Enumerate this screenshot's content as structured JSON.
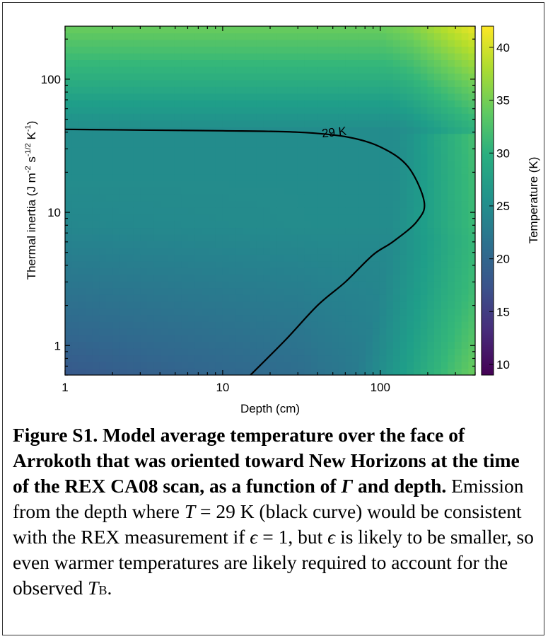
{
  "chart_data": {
    "type": "heatmap",
    "title": "",
    "xlabel": "Depth (cm)",
    "ylabel": "Thermal inertia (J m⁻² s⁻¹ᐟ² K⁻¹)",
    "ylabel_parts": {
      "base": "Thermal inertia (J m",
      "sup1": "-2",
      "mid1": " s",
      "sup2": "-1/2",
      "mid2": " K",
      "sup3": "-1",
      "end": ")"
    },
    "x_scale": "log",
    "y_scale": "log",
    "xlim": [
      1,
      400
    ],
    "ylim": [
      0.6,
      250
    ],
    "x_ticks": [
      1,
      10,
      100
    ],
    "x_tick_labels": [
      "1",
      "10",
      "100"
    ],
    "y_ticks": [
      1,
      10,
      100
    ],
    "y_tick_labels": [
      "1",
      "10",
      "100"
    ],
    "colorbar": {
      "label": "Temperature (K)",
      "range": [
        9,
        42
      ],
      "ticks": [
        10,
        15,
        20,
        25,
        30,
        35,
        40
      ],
      "tick_labels": [
        "10",
        "15",
        "20",
        "25",
        "30",
        "35",
        "40"
      ],
      "colormap": "viridis"
    },
    "contour": {
      "label": "29 K",
      "level": 29,
      "points": [
        [
          1,
          42
        ],
        [
          3,
          41.5
        ],
        [
          10,
          41
        ],
        [
          30,
          40
        ],
        [
          60,
          37
        ],
        [
          100,
          31
        ],
        [
          150,
          22
        ],
        [
          190,
          12
        ],
        [
          170,
          8.5
        ],
        [
          120,
          6
        ],
        [
          90,
          4.8
        ],
        [
          60,
          3
        ],
        [
          40,
          2
        ],
        [
          25,
          1.1
        ],
        [
          15,
          0.6
        ]
      ]
    },
    "grid": false
  },
  "caption": {
    "bold": "Figure S1.  Model average temperature over the face of Arrokoth that was oriented toward New Horizons at the time of the REX CA08 scan, as a function of ",
    "gamma": "Γ",
    "bold_end": " and depth.",
    "t1": "  Emission from the depth where ",
    "T": "T",
    "t2": " = 29 K (black curve) would be consistent with the REX measure­ment if ",
    "eps1": "ϵ",
    "t3": " = 1, but ",
    "eps2": "ϵ",
    "t4": " is likely to be smaller, so even warmer temperatures are likely required to account for the observed ",
    "TB": "T",
    "TB_sub": "B",
    "t5": "."
  }
}
